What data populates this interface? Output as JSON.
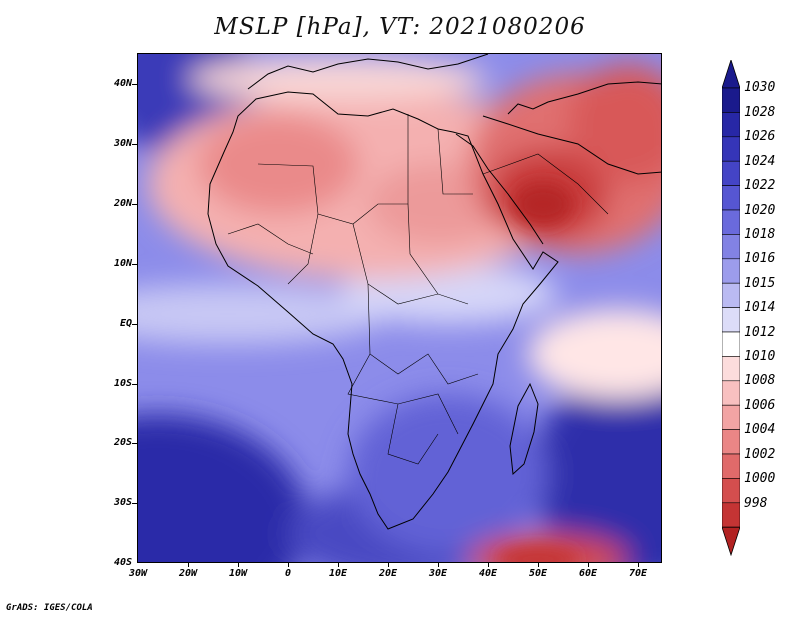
{
  "title": "MSLP [hPa], VT: 2021080206",
  "credit": "GrADS: IGES/COLA",
  "map": {
    "variable": "Mean sea level pressure",
    "units": "hPa",
    "valid_time": "2021080206",
    "region": "Africa",
    "lon_range": [
      -30,
      75
    ],
    "lat_range": [
      -40,
      45
    ],
    "lat_labels": [
      "40N",
      "30N",
      "20N",
      "10N",
      "EQ",
      "10S",
      "20S",
      "30S",
      "40S"
    ],
    "lon_labels": [
      "30W",
      "20W",
      "10W",
      "0",
      "10E",
      "20E",
      "30E",
      "40E",
      "50E",
      "60E",
      "70E"
    ]
  },
  "colorbar": {
    "labels": [
      "1030",
      "1028",
      "1026",
      "1024",
      "1022",
      "1020",
      "1018",
      "1016",
      "1015",
      "1014",
      "1012",
      "1010",
      "1008",
      "1006",
      "1004",
      "1002",
      "1000",
      "998"
    ],
    "colors": [
      "#1a1a8c",
      "#2727a6",
      "#3535b8",
      "#4444c6",
      "#5656d2",
      "#6a6adc",
      "#8282e4",
      "#9c9cec",
      "#babaf2",
      "#dcdcf8",
      "#ffffff",
      "#fcdcdc",
      "#f8c0c0",
      "#f2a4a4",
      "#ea8686",
      "#e06a6a",
      "#d44e4e",
      "#c43434",
      "#b22222"
    ]
  }
}
